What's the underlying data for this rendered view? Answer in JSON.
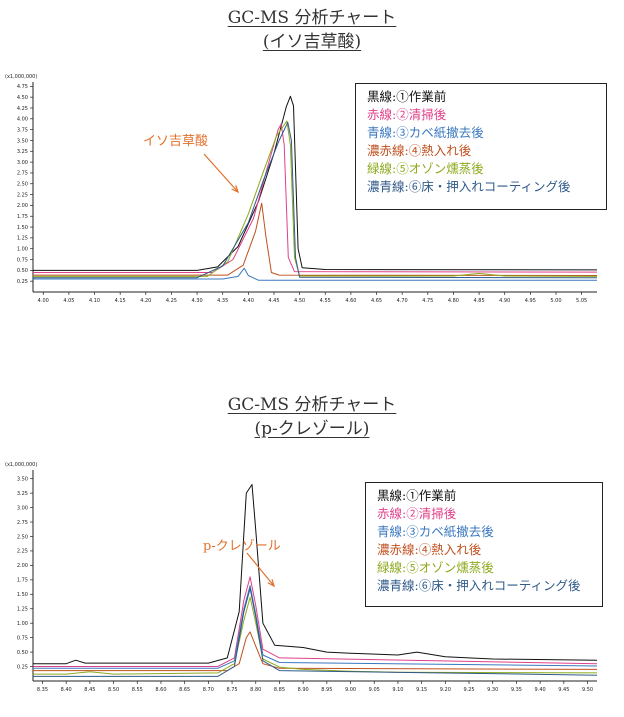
{
  "chart_data": [
    {
      "type": "line",
      "title": "GC-MS 分析チャート",
      "subtitle": "(イソ吉草酸)",
      "scale_label": "(x1,000,000)",
      "xlim": [
        3.98,
        5.08
      ],
      "ylim": [
        0,
        4.85
      ],
      "x_ticks": [
        "4.00",
        "4.05",
        "4.10",
        "4.15",
        "4.20",
        "4.25",
        "4.30",
        "4.35",
        "4.40",
        "4.45",
        "4.50",
        "4.55",
        "4.60",
        "4.65",
        "4.70",
        "4.75",
        "4.80",
        "4.85",
        "4.90",
        "4.95",
        "5.00",
        "5.05"
      ],
      "y_ticks": [
        "0.25",
        "0.50",
        "0.75",
        "1.00",
        "1.25",
        "1.50",
        "1.75",
        "2.00",
        "2.25",
        "2.50",
        "2.75",
        "3.00",
        "3.25",
        "3.50",
        "3.75",
        "4.00",
        "4.25",
        "4.50",
        "4.75"
      ],
      "annotation": "イソ吉草酸",
      "series": [
        {
          "name": "黒線:①作業前",
          "color": "#111111",
          "points": [
            [
              3.98,
              0.5
            ],
            [
              4.3,
              0.5
            ],
            [
              4.34,
              0.58
            ],
            [
              4.38,
              1.05
            ],
            [
              4.42,
              2.1
            ],
            [
              4.45,
              3.2
            ],
            [
              4.474,
              4.28
            ],
            [
              4.482,
              4.52
            ],
            [
              4.488,
              4.3
            ],
            [
              4.497,
              1.0
            ],
            [
              4.505,
              0.56
            ],
            [
              4.55,
              0.52
            ],
            [
              5.08,
              0.51
            ]
          ]
        },
        {
          "name": "赤線:②清掃後",
          "color": "#e0408a",
          "points": [
            [
              3.98,
              0.45
            ],
            [
              4.33,
              0.45
            ],
            [
              4.37,
              0.75
            ],
            [
              4.41,
              1.7
            ],
            [
              4.44,
              3.0
            ],
            [
              4.458,
              3.75
            ],
            [
              4.464,
              3.88
            ],
            [
              4.47,
              3.4
            ],
            [
              4.478,
              0.8
            ],
            [
              4.49,
              0.47
            ],
            [
              5.08,
              0.46
            ]
          ]
        },
        {
          "name": "青線:③カベ紙撤去後",
          "color": "#3a78c0",
          "points": [
            [
              3.98,
              0.3
            ],
            [
              4.35,
              0.3
            ],
            [
              4.38,
              0.36
            ],
            [
              4.392,
              0.55
            ],
            [
              4.4,
              0.38
            ],
            [
              4.42,
              0.27
            ],
            [
              5.08,
              0.27
            ]
          ]
        },
        {
          "name": "濃赤線:④熱入れ後",
          "color": "#c0501e",
          "points": [
            [
              3.98,
              0.39
            ],
            [
              4.36,
              0.39
            ],
            [
              4.39,
              0.62
            ],
            [
              4.414,
              1.4
            ],
            [
              4.426,
              2.05
            ],
            [
              4.434,
              1.3
            ],
            [
              4.445,
              0.45
            ],
            [
              4.46,
              0.39
            ],
            [
              5.08,
              0.38
            ]
          ]
        },
        {
          "name": "緑線:⑤オゾン燻蒸後",
          "color": "#8caa1e",
          "points": [
            [
              3.98,
              0.36
            ],
            [
              4.32,
              0.36
            ],
            [
              4.36,
              0.7
            ],
            [
              4.4,
              1.8
            ],
            [
              4.43,
              2.8
            ],
            [
              4.455,
              3.6
            ],
            [
              4.475,
              3.95
            ],
            [
              4.482,
              3.4
            ],
            [
              4.49,
              0.8
            ],
            [
              4.5,
              0.37
            ],
            [
              4.8,
              0.37
            ],
            [
              4.85,
              0.43
            ],
            [
              4.9,
              0.37
            ],
            [
              5.08,
              0.36
            ]
          ]
        },
        {
          "name": "濃青線:⑥床・押入れコーティング後",
          "color": "#2f5a8a",
          "points": [
            [
              3.98,
              0.33
            ],
            [
              4.3,
              0.33
            ],
            [
              4.35,
              0.6
            ],
            [
              4.4,
              1.6
            ],
            [
              4.43,
              2.6
            ],
            [
              4.46,
              3.5
            ],
            [
              4.477,
              3.92
            ],
            [
              4.484,
              3.5
            ],
            [
              4.492,
              0.8
            ],
            [
              4.5,
              0.34
            ],
            [
              5.08,
              0.33
            ]
          ]
        }
      ]
    },
    {
      "type": "line",
      "title": "GC-MS 分析チャート",
      "subtitle": "(p-クレゾール)",
      "scale_label": "(x1,000,000)",
      "xlim": [
        8.33,
        9.52
      ],
      "ylim": [
        0,
        3.65
      ],
      "x_ticks": [
        "8.35",
        "8.40",
        "8.45",
        "8.50",
        "8.55",
        "8.60",
        "8.65",
        "8.70",
        "8.75",
        "8.80",
        "8.85",
        "8.90",
        "8.95",
        "9.00",
        "9.05",
        "9.10",
        "9.15",
        "9.20",
        "9.25",
        "9.30",
        "9.35",
        "9.40",
        "9.45",
        "9.50"
      ],
      "y_ticks": [
        "0.25",
        "0.50",
        "0.75",
        "1.00",
        "1.25",
        "1.50",
        "1.75",
        "2.00",
        "2.25",
        "2.50",
        "2.75",
        "3.00",
        "3.25",
        "3.50"
      ],
      "annotation": "p-クレゾール",
      "series": [
        {
          "name": "黒線:①作業前",
          "color": "#111111",
          "points": [
            [
              8.33,
              0.3
            ],
            [
              8.4,
              0.3
            ],
            [
              8.42,
              0.36
            ],
            [
              8.44,
              0.31
            ],
            [
              8.7,
              0.31
            ],
            [
              8.74,
              0.4
            ],
            [
              8.765,
              1.2
            ],
            [
              8.78,
              3.25
            ],
            [
              8.792,
              3.4
            ],
            [
              8.8,
              2.6
            ],
            [
              8.815,
              1.0
            ],
            [
              8.84,
              0.62
            ],
            [
              8.9,
              0.58
            ],
            [
              8.95,
              0.5
            ],
            [
              9.0,
              0.48
            ],
            [
              9.1,
              0.45
            ],
            [
              9.14,
              0.5
            ],
            [
              9.2,
              0.42
            ],
            [
              9.3,
              0.38
            ],
            [
              9.52,
              0.36
            ]
          ]
        },
        {
          "name": "赤線:②清掃後",
          "color": "#e0408a",
          "points": [
            [
              8.33,
              0.25
            ],
            [
              8.72,
              0.25
            ],
            [
              8.755,
              0.4
            ],
            [
              8.775,
              1.4
            ],
            [
              8.788,
              1.8
            ],
            [
              8.8,
              1.3
            ],
            [
              8.815,
              0.55
            ],
            [
              8.85,
              0.4
            ],
            [
              9.52,
              0.3
            ]
          ]
        },
        {
          "name": "青線:③カベ紙撤去後",
          "color": "#3a78c0",
          "points": [
            [
              8.33,
              0.22
            ],
            [
              8.72,
              0.22
            ],
            [
              8.755,
              0.35
            ],
            [
              8.775,
              1.25
            ],
            [
              8.788,
              1.65
            ],
            [
              8.8,
              1.15
            ],
            [
              8.815,
              0.45
            ],
            [
              8.85,
              0.32
            ],
            [
              9.52,
              0.26
            ]
          ]
        },
        {
          "name": "濃赤線:④熱入れ後",
          "color": "#c0501e",
          "points": [
            [
              8.33,
              0.18
            ],
            [
              8.74,
              0.18
            ],
            [
              8.765,
              0.3
            ],
            [
              8.78,
              0.75
            ],
            [
              8.788,
              0.85
            ],
            [
              8.8,
              0.6
            ],
            [
              8.815,
              0.3
            ],
            [
              8.85,
              0.22
            ],
            [
              9.52,
              0.2
            ]
          ]
        },
        {
          "name": "緑線:⑤オゾン燻蒸後",
          "color": "#8caa1e",
          "points": [
            [
              8.33,
              0.12
            ],
            [
              8.4,
              0.12
            ],
            [
              8.45,
              0.16
            ],
            [
              8.5,
              0.12
            ],
            [
              8.72,
              0.14
            ],
            [
              8.755,
              0.3
            ],
            [
              8.775,
              1.05
            ],
            [
              8.788,
              1.45
            ],
            [
              8.8,
              1.0
            ],
            [
              8.815,
              0.38
            ],
            [
              8.85,
              0.24
            ],
            [
              8.9,
              0.2
            ],
            [
              9.0,
              0.17
            ],
            [
              9.1,
              0.15
            ],
            [
              9.52,
              0.14
            ]
          ]
        },
        {
          "name": "濃青線:⑥床・押入れコーティング後",
          "color": "#2f5a8a",
          "points": [
            [
              8.33,
              0.08
            ],
            [
              8.72,
              0.08
            ],
            [
              8.755,
              0.25
            ],
            [
              8.775,
              1.2
            ],
            [
              8.788,
              1.6
            ],
            [
              8.8,
              1.1
            ],
            [
              8.815,
              0.35
            ],
            [
              8.85,
              0.18
            ],
            [
              9.52,
              0.1
            ]
          ]
        }
      ]
    }
  ]
}
